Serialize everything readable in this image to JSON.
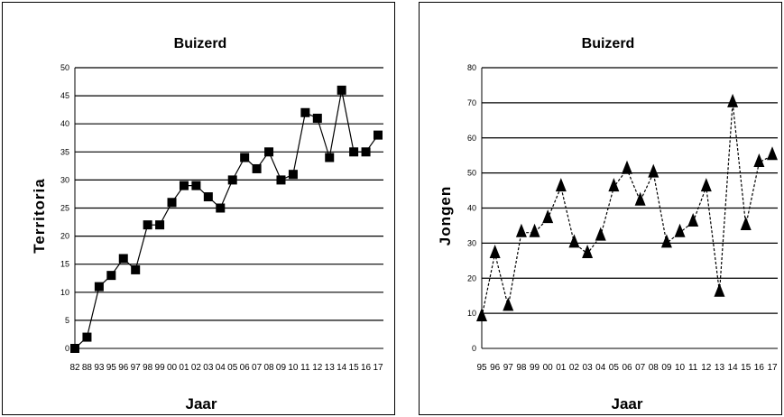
{
  "chart_data": [
    {
      "type": "line",
      "title": "Buizerd",
      "xlabel": "Jaar",
      "ylabel": "Territoria",
      "categories": [
        "82",
        "88",
        "93",
        "95",
        "96",
        "97",
        "98",
        "99",
        "00",
        "01",
        "02",
        "03",
        "04",
        "05",
        "06",
        "07",
        "08",
        "09",
        "10",
        "11",
        "12",
        "13",
        "14",
        "15",
        "16",
        "17"
      ],
      "series": [
        {
          "values": [
            0,
            2,
            11,
            13,
            16,
            14,
            22,
            22,
            26,
            29,
            29,
            27,
            25,
            30,
            34,
            32,
            35,
            30,
            31,
            42,
            41,
            34,
            46,
            35,
            35,
            38
          ]
        }
      ],
      "ylim": [
        0,
        50
      ],
      "yticks": [
        0,
        5,
        10,
        15,
        20,
        25,
        30,
        35,
        40,
        45,
        50
      ],
      "grid": true,
      "marker": "square",
      "line_style": "solid"
    },
    {
      "type": "line",
      "title": "Buizerd",
      "xlabel": "Jaar",
      "ylabel": "Jongen",
      "categories": [
        "95",
        "96",
        "97",
        "98",
        "99",
        "00",
        "01",
        "02",
        "03",
        "04",
        "05",
        "06",
        "07",
        "08",
        "09",
        "10",
        "11",
        "12",
        "13",
        "14",
        "15",
        "16",
        "17"
      ],
      "series": [
        {
          "values": [
            9,
            27,
            12,
            33,
            33,
            37,
            46,
            30,
            27,
            32,
            46,
            51,
            42,
            50,
            30,
            33,
            36,
            46,
            16,
            70,
            35,
            53,
            55
          ]
        }
      ],
      "ylim": [
        0,
        80
      ],
      "yticks": [
        0,
        10,
        20,
        30,
        40,
        50,
        60,
        70,
        80
      ],
      "grid": true,
      "marker": "triangle",
      "line_style": "dashed"
    }
  ]
}
